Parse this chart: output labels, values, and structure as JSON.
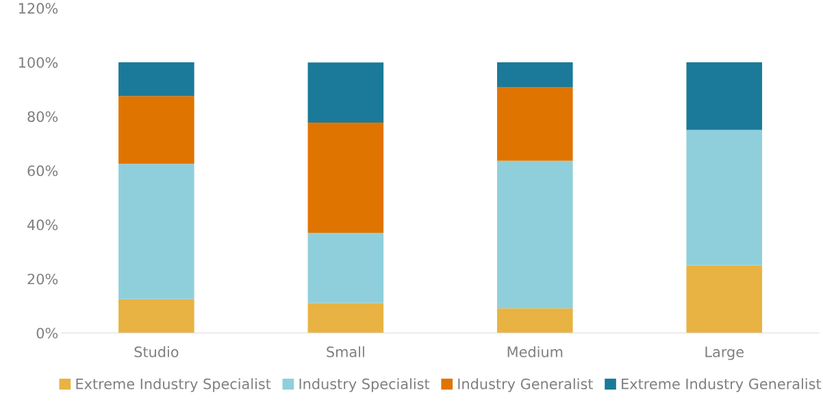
{
  "chart_data": {
    "type": "bar",
    "stacked": true,
    "categories": [
      "Studio",
      "Small",
      "Medium",
      "Large"
    ],
    "series": [
      {
        "name": "Extreme Industry Specialist",
        "color": "#e8b342",
        "values": [
          12.5,
          11.1,
          9.1,
          25
        ]
      },
      {
        "name": "Industry Specialist",
        "color": "#8fcfdb",
        "values": [
          50,
          25.9,
          54.5,
          50
        ]
      },
      {
        "name": "Industry Generalist",
        "color": "#e07400",
        "values": [
          25,
          40.7,
          27.3,
          0
        ]
      },
      {
        "name": "Extreme Industry Generalist",
        "color": "#1b7a99",
        "values": [
          12.5,
          22.2,
          9.1,
          25
        ]
      }
    ],
    "ylim": [
      0,
      120
    ],
    "yticks": [
      {
        "value": 0,
        "label": "0%"
      },
      {
        "value": 20,
        "label": "20%"
      },
      {
        "value": 40,
        "label": "40%"
      },
      {
        "value": 60,
        "label": "60%"
      },
      {
        "value": 80,
        "label": "80%"
      },
      {
        "value": 100,
        "label": "100%"
      },
      {
        "value": 120,
        "label": "120%"
      }
    ],
    "grid": false,
    "legend": "bottom"
  }
}
